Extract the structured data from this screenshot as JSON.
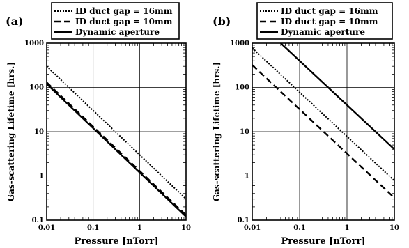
{
  "chart_data": [
    {
      "type": "line",
      "panel_label": "(a)",
      "xlabel": "Pressure [nTorr]",
      "ylabel": "Gas-scattering Lifetime [hrs.]",
      "xscale": "log",
      "yscale": "log",
      "xlim": [
        0.01,
        10
      ],
      "ylim": [
        0.1,
        1000
      ],
      "xticks": [
        "0.01",
        "0.1",
        "1",
        "10"
      ],
      "yticks": [
        "0.1",
        "1",
        "10",
        "100",
        "1000"
      ],
      "legend_position": "top",
      "series": [
        {
          "name": "ID duct gap = 16mm",
          "style": "dotted",
          "x": [
            0.01,
            10
          ],
          "y": [
            300,
            0.3
          ]
        },
        {
          "name": "ID duct gap = 10mm",
          "style": "dashed",
          "x": [
            0.01,
            10
          ],
          "y": [
            130,
            0.13
          ]
        },
        {
          "name": "Dynamic aperture",
          "style": "solid",
          "x": [
            0.01,
            10
          ],
          "y": [
            120,
            0.12
          ]
        }
      ]
    },
    {
      "type": "line",
      "panel_label": "(b)",
      "xlabel": "Pressure [nTorr]",
      "ylabel": "Gas-scattering Lifetime [hrs.]",
      "xscale": "log",
      "yscale": "log",
      "xlim": [
        0.01,
        10
      ],
      "ylim": [
        0.1,
        1000
      ],
      "xticks": [
        "0.01",
        "0.1",
        "1",
        "10"
      ],
      "yticks": [
        "0.1",
        "1",
        "10",
        "100",
        "1000"
      ],
      "legend_position": "top",
      "series": [
        {
          "name": "ID duct gap = 16mm",
          "style": "dotted",
          "x": [
            0.01,
            10
          ],
          "y": [
            780,
            0.78
          ]
        },
        {
          "name": "ID duct gap = 10mm",
          "style": "dashed",
          "x": [
            0.01,
            10
          ],
          "y": [
            320,
            0.32
          ]
        },
        {
          "name": "Dynamic aperture",
          "style": "solid",
          "x": [
            0.04,
            10
          ],
          "y": [
            1000,
            4
          ]
        }
      ]
    }
  ]
}
